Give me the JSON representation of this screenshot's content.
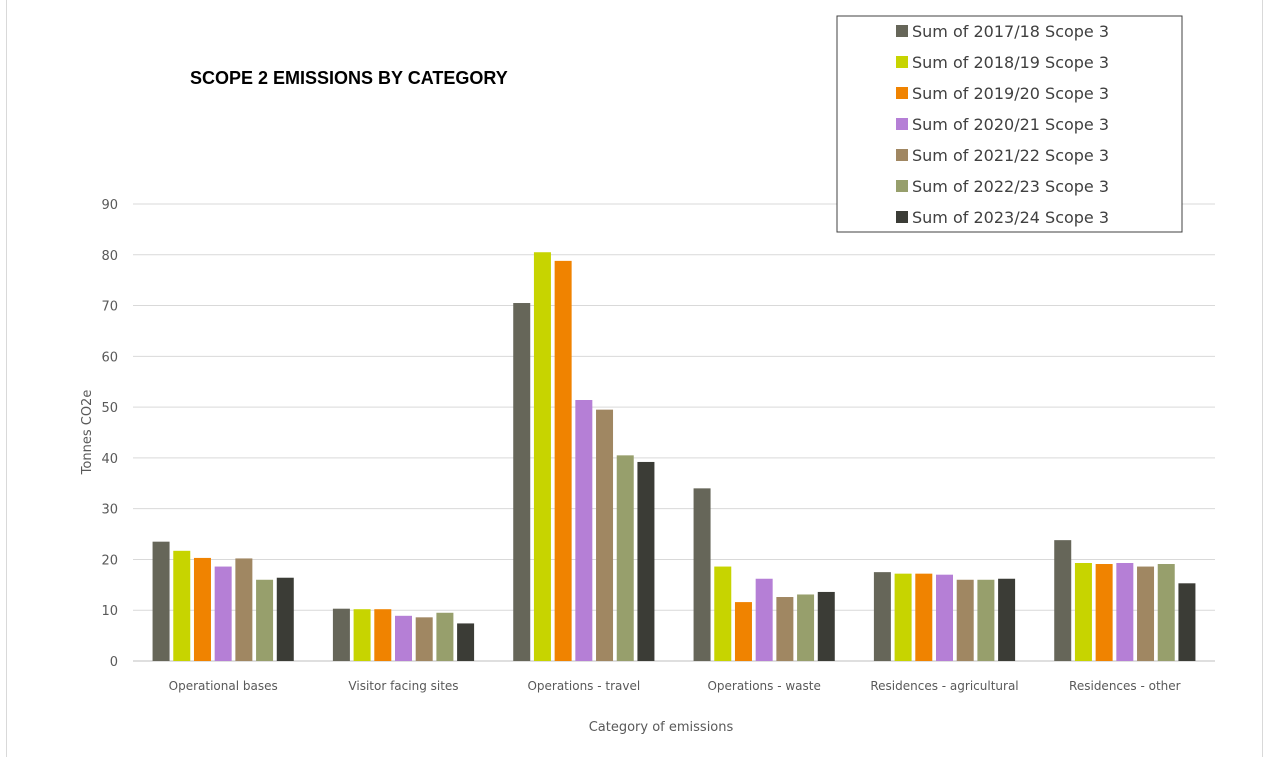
{
  "chart_data": {
    "type": "bar",
    "title": "SCOPE 2 EMISSIONS BY CATEGORY",
    "xlabel": "Category of emissions",
    "ylabel": "Tonnes CO2e",
    "ylim": [
      0,
      90
    ],
    "yticks": [
      "0",
      "10",
      "20",
      "30",
      "40",
      "50",
      "60",
      "70",
      "80",
      "90"
    ],
    "grid": true,
    "legend_position": "top-right",
    "categories": [
      "Operational bases",
      "Visitor facing sites",
      "Operations - travel",
      "Operations - waste",
      "Residences - agricultural",
      "Residences - other"
    ],
    "series": [
      {
        "name": "Sum of 2017/18 Scope 3",
        "color": "#666659",
        "values": [
          23.5,
          10.3,
          70.5,
          34.0,
          17.5,
          23.8
        ]
      },
      {
        "name": "Sum of 2018/19 Scope 3",
        "color": "#c7d400",
        "values": [
          21.7,
          10.2,
          80.5,
          18.6,
          17.2,
          19.3
        ]
      },
      {
        "name": "Sum of 2019/20 Scope 3",
        "color": "#f08300",
        "values": [
          20.3,
          10.2,
          78.8,
          11.6,
          17.2,
          19.1
        ]
      },
      {
        "name": "Sum of 2020/21 Scope 3",
        "color": "#b57fd6",
        "values": [
          18.6,
          8.9,
          51.4,
          16.2,
          17.0,
          19.3
        ]
      },
      {
        "name": "Sum of 2021/22 Scope 3",
        "color": "#a08762",
        "values": [
          20.2,
          8.6,
          49.5,
          12.6,
          16.0,
          18.6
        ]
      },
      {
        "name": "Sum of 2022/23 Scope 3",
        "color": "#979f6c",
        "values": [
          16.0,
          9.5,
          40.5,
          13.1,
          16.0,
          19.1
        ]
      },
      {
        "name": "Sum of 2023/24 Scope 3",
        "color": "#3b3c36",
        "values": [
          16.4,
          7.4,
          39.2,
          13.6,
          16.2,
          15.3
        ]
      }
    ]
  }
}
